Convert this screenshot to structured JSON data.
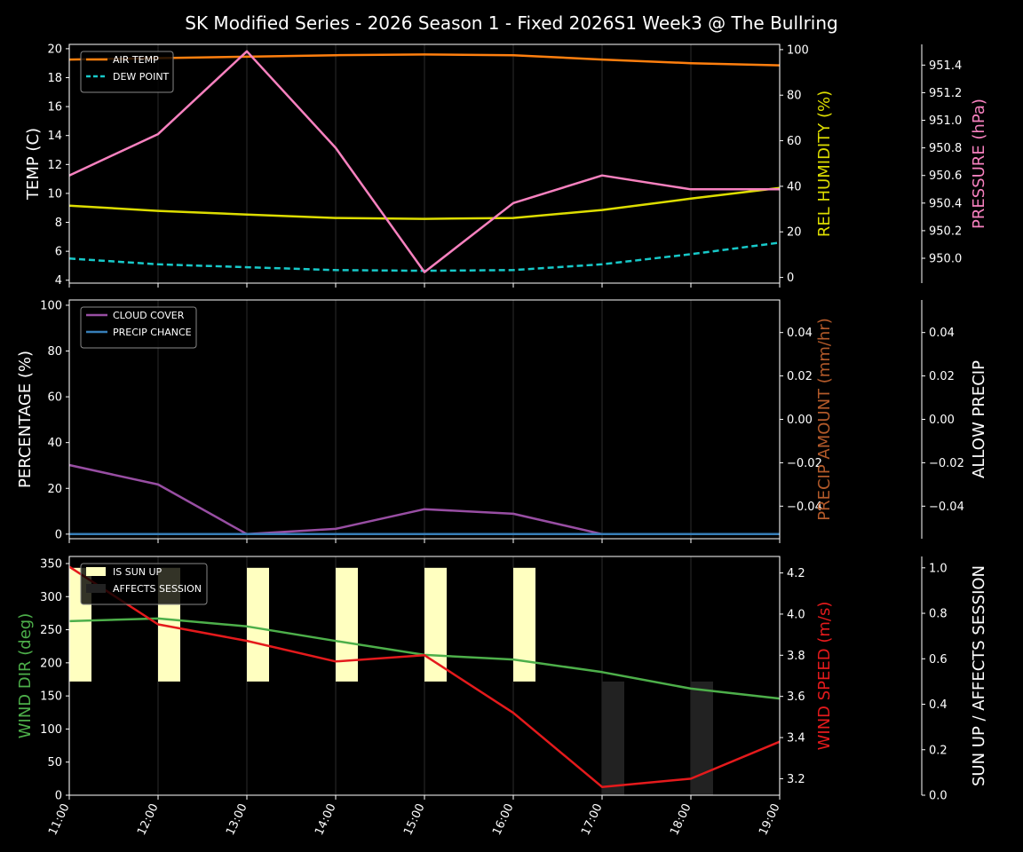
{
  "title": "SK Modified Series - 2026 Season 1 - Fixed 2026S1 Week3 @ The Bullring",
  "chart_data": [
    {
      "type": "line",
      "x": [
        "11:00",
        "12:00",
        "13:00",
        "14:00",
        "15:00",
        "16:00",
        "17:00",
        "18:00",
        "19:00"
      ],
      "grid": "vertical",
      "legend": "top-left",
      "axes": {
        "left": {
          "label": "TEMP (C)",
          "color": "#ffffff",
          "range": [
            3.8,
            20.3
          ],
          "ticks": [
            4,
            6,
            8,
            10,
            12,
            14,
            16,
            18,
            20
          ]
        },
        "right": {
          "label": "REL HUMIDITY (%)",
          "color": "#dddd00",
          "range": [
            -2.5,
            102.3
          ],
          "ticks": [
            0,
            20,
            40,
            60,
            80,
            100
          ]
        },
        "right2": {
          "label": "PRESSURE (hPa)",
          "color": "#f781bf",
          "range": [
            949.82,
            951.55
          ],
          "ticks": [
            "950.0",
            "950.2",
            "950.4",
            "950.6",
            "950.8",
            "951.0",
            "951.2",
            "951.4"
          ]
        }
      },
      "series": [
        {
          "name": "AIR TEMP",
          "axis": "left",
          "color": "#ff7f0e",
          "style": "solid",
          "legend": true,
          "values": [
            19.25,
            19.35,
            19.45,
            19.55,
            19.6,
            19.55,
            19.25,
            19.0,
            18.85
          ]
        },
        {
          "name": "DEW POINT",
          "axis": "left",
          "color": "#17c9c9",
          "style": "dashed",
          "legend": true,
          "values": [
            5.5,
            5.1,
            4.9,
            4.7,
            4.65,
            4.7,
            5.1,
            5.8,
            6.6
          ]
        },
        {
          "axis": "right",
          "color": "#dddd00",
          "style": "solid",
          "values": [
            31.5,
            29.2,
            27.6,
            26.1,
            25.7,
            26.1,
            29.6,
            34.6,
            39.3
          ]
        },
        {
          "axis": "right2",
          "color": "#f781bf",
          "style": "solid",
          "values": [
            950.6,
            950.9,
            951.5,
            950.8,
            949.9,
            950.4,
            950.6,
            950.5,
            950.5
          ]
        }
      ]
    },
    {
      "type": "line",
      "x": [
        "11:00",
        "12:00",
        "13:00",
        "14:00",
        "15:00",
        "16:00",
        "17:00",
        "18:00",
        "19:00"
      ],
      "grid": "vertical",
      "legend": "top-left",
      "axes": {
        "left": {
          "label": "PERCENTAGE (%)",
          "color": "#ffffff",
          "range": [
            -2,
            102.3
          ],
          "ticks": [
            0,
            20,
            40,
            60,
            80,
            100
          ]
        },
        "right": {
          "label": "PRECIP AMOUNT (mm/hr)",
          "color": "#b35a2a",
          "range": [
            -0.055,
            0.055
          ],
          "ticks": [
            "−0.04",
            "−0.02",
            "0.00",
            "0.02",
            "0.04"
          ],
          "tick_values": [
            -0.04,
            -0.02,
            0,
            0.02,
            0.04
          ]
        },
        "right2": {
          "label": "ALLOW PRECIP",
          "color": "#ffffff",
          "range": [
            -0.055,
            0.055
          ],
          "ticks": [
            "−0.04",
            "−0.02",
            "0.00",
            "0.02",
            "0.04"
          ],
          "tick_values": [
            -0.04,
            -0.02,
            0,
            0.02,
            0.04
          ]
        }
      },
      "series": [
        {
          "name": "CLOUD COVER",
          "axis": "left",
          "color": "#984ea3",
          "style": "solid",
          "legend": true,
          "values": [
            30.2,
            21.7,
            0,
            2.3,
            10.9,
            8.9,
            0,
            0,
            0
          ]
        },
        {
          "name": "PRECIP CHANCE",
          "axis": "left",
          "color": "#377eb8",
          "style": "solid",
          "legend": true,
          "values": [
            0,
            0,
            0,
            0,
            0,
            0,
            0,
            0,
            0
          ]
        }
      ]
    },
    {
      "type": "line",
      "x": [
        "11:00",
        "12:00",
        "13:00",
        "14:00",
        "15:00",
        "16:00",
        "17:00",
        "18:00",
        "19:00"
      ],
      "grid": "vertical",
      "legend": "top-left",
      "axes": {
        "left": {
          "label": "WIND DIR (deg)",
          "color": "#4daf4a",
          "range": [
            0,
            360.7
          ],
          "ticks": [
            0,
            50,
            100,
            150,
            200,
            250,
            300,
            350
          ]
        },
        "right": {
          "label": "WIND SPEED (m/s)",
          "color": "#e41a1c",
          "range": [
            3.12,
            4.28
          ],
          "ticks": [
            "3.2",
            "3.4",
            "3.6",
            "3.8",
            "4.0",
            "4.2"
          ]
        },
        "right2": {
          "label": "SUN UP / AFFECTS SESSION",
          "color": "#ffffff",
          "range": [
            0,
            1.05
          ],
          "ticks": [
            "0.0",
            "0.2",
            "0.4",
            "0.6",
            "0.8",
            "1.0"
          ]
        }
      },
      "bars": [
        {
          "name": "IS SUN UP",
          "color": "#ffffc0",
          "range": [
            0.5,
            1.0
          ],
          "values": [
            1,
            1,
            1,
            1,
            1,
            1,
            0,
            0,
            0
          ]
        },
        {
          "name": "AFFECTS SESSION",
          "color": "#222222",
          "range": [
            0,
            0.5
          ],
          "values": [
            0,
            0,
            0,
            0,
            0,
            0,
            1,
            1,
            0
          ]
        }
      ],
      "series": [
        {
          "axis": "left",
          "color": "#4daf4a",
          "style": "solid",
          "values": [
            263,
            267,
            255,
            233,
            212,
            205,
            186,
            161,
            146
          ]
        },
        {
          "axis": "right",
          "color": "#e41a1c",
          "style": "solid",
          "values": [
            4.23,
            3.95,
            3.87,
            3.77,
            3.8,
            3.52,
            3.16,
            3.2,
            3.38
          ]
        }
      ]
    }
  ]
}
